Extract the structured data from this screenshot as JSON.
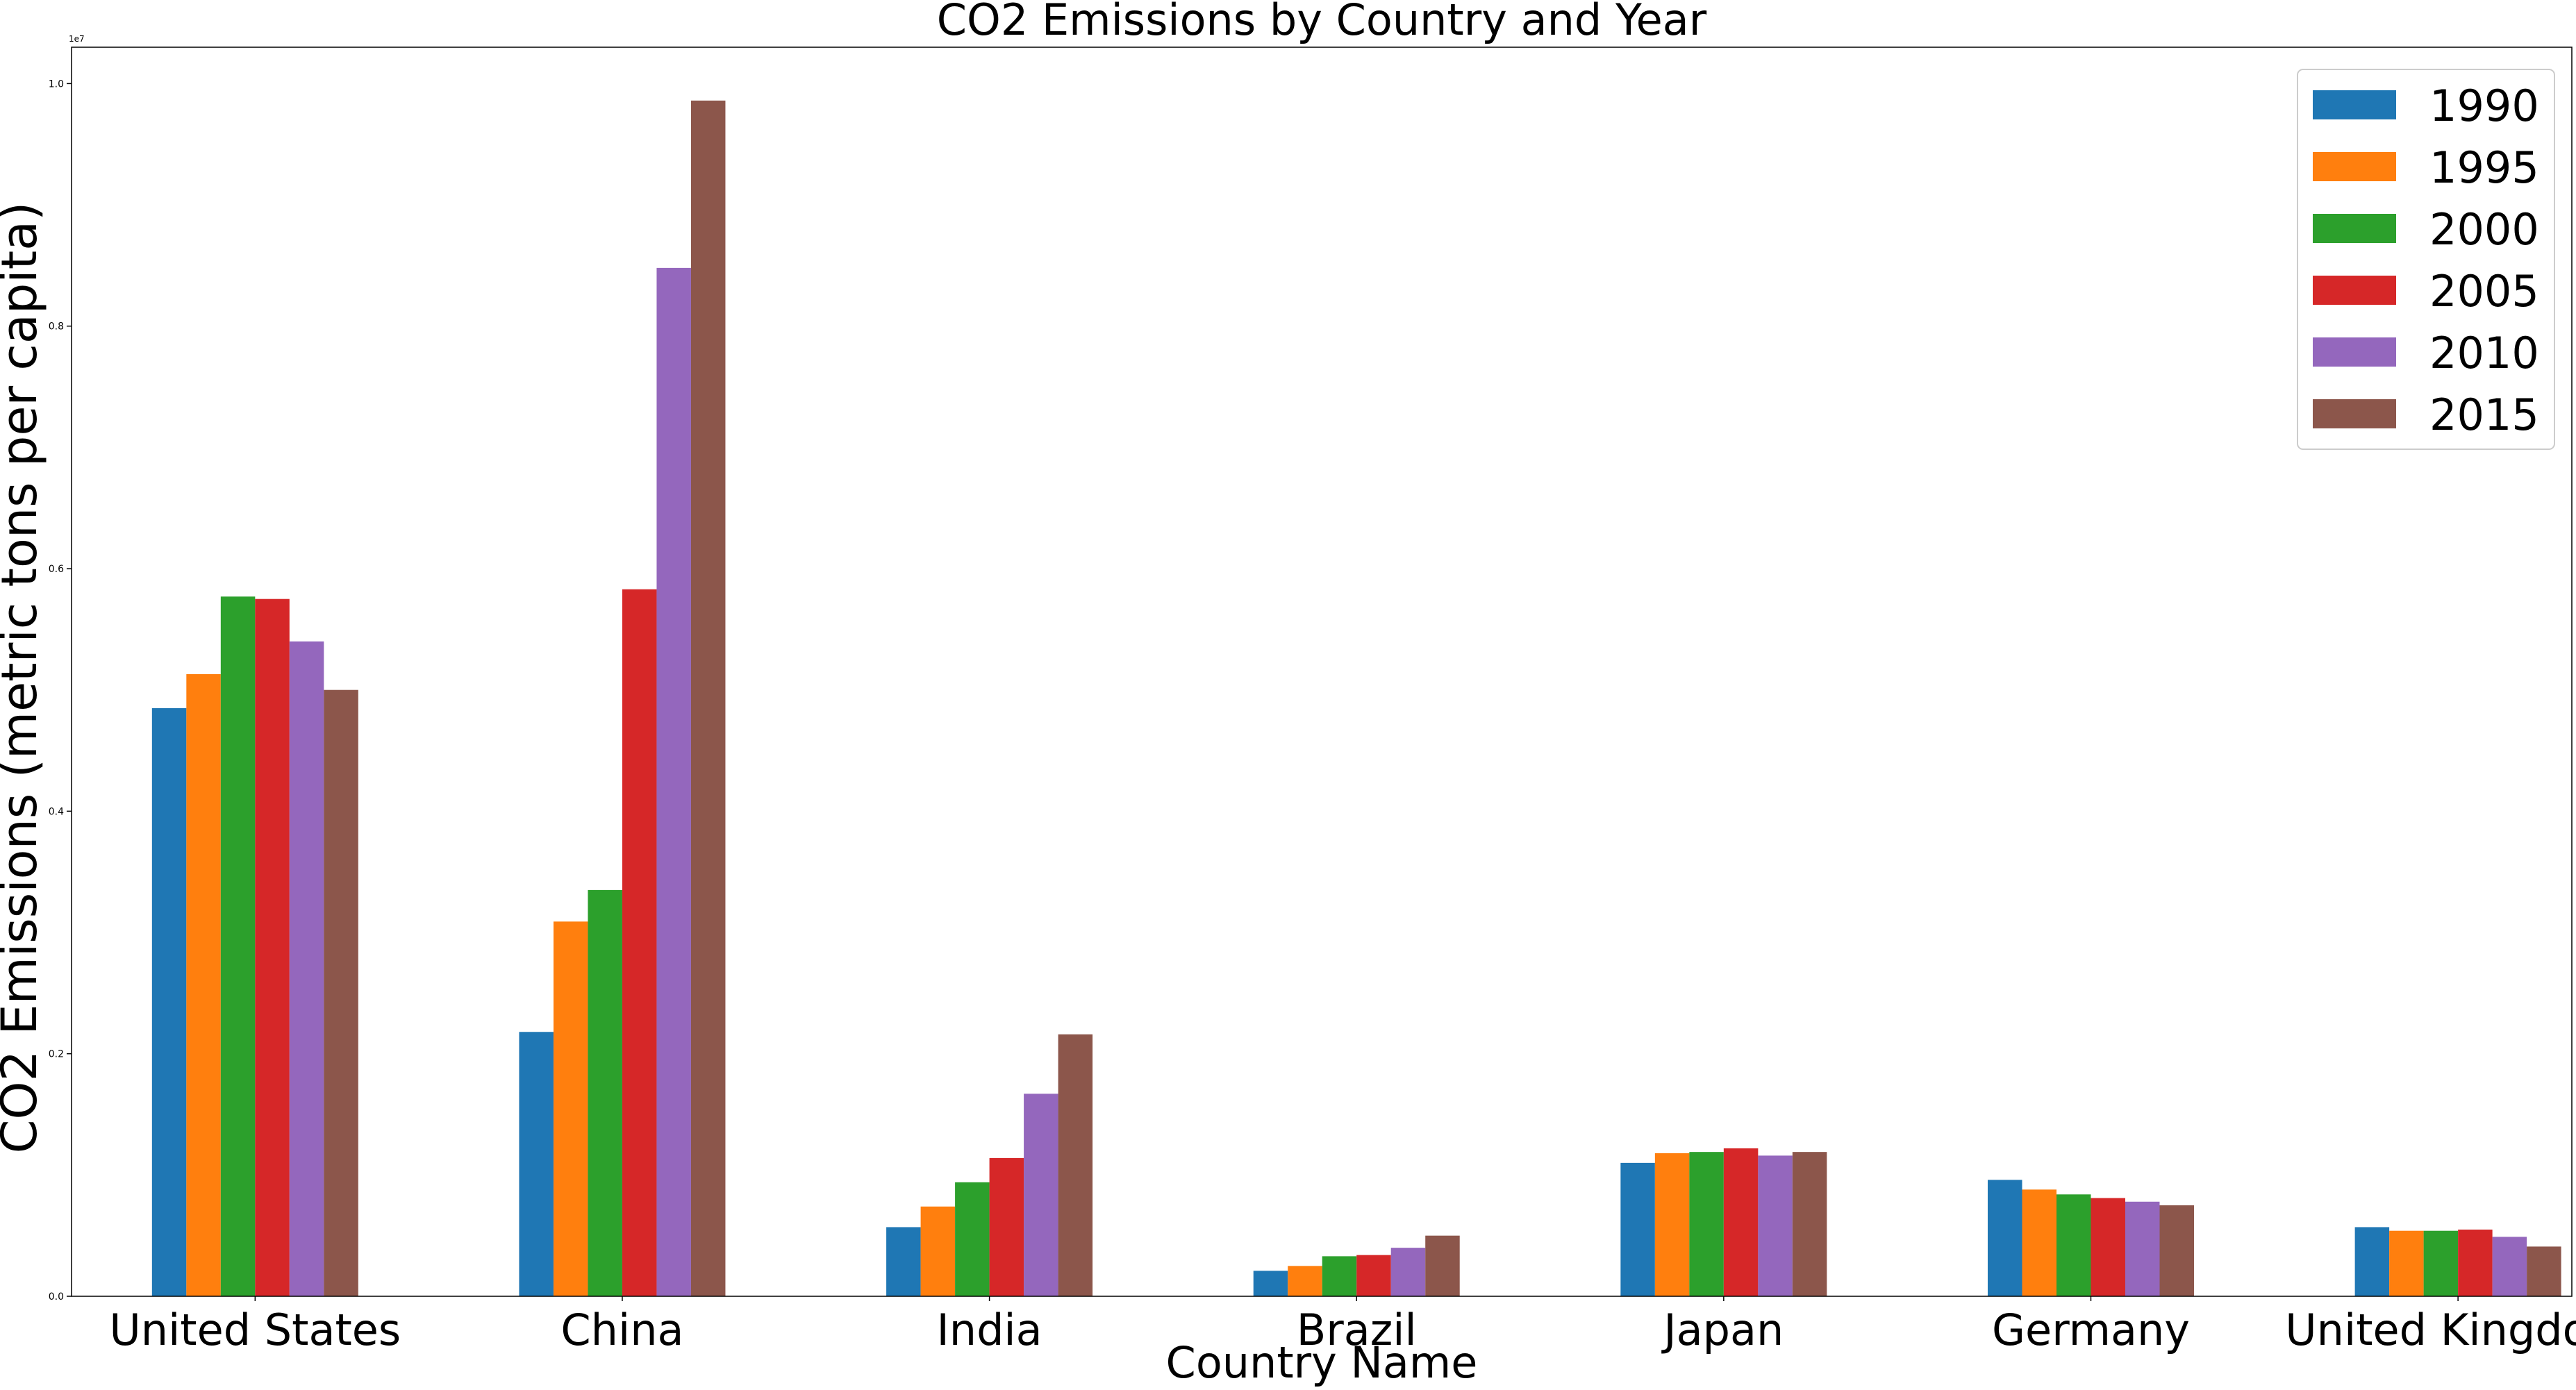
{
  "chart_data": {
    "type": "bar",
    "title": "CO2 Emissions by Country and Year",
    "xlabel": "Country Name",
    "ylabel": "CO2 Emissions (metric tons per capita)",
    "y_offset_text": "1e7",
    "ylim": [
      0,
      1.03
    ],
    "yticks": [
      "0.0",
      "0.2",
      "0.4",
      "0.6",
      "0.8",
      "1.0"
    ],
    "categories": [
      "United States",
      "China",
      "India",
      "Brazil",
      "Japan",
      "Germany",
      "United Kingdom"
    ],
    "legend_position": "top-right",
    "grid": false,
    "series": [
      {
        "name": "1990",
        "color": "#1f77b4",
        "values": [
          0.485,
          0.218,
          0.057,
          0.021,
          0.11,
          0.096,
          0.057
        ]
      },
      {
        "name": "1995",
        "color": "#ff7f0e",
        "values": [
          0.513,
          0.309,
          0.074,
          0.025,
          0.118,
          0.088,
          0.054
        ]
      },
      {
        "name": "2000",
        "color": "#2ca02c",
        "values": [
          0.577,
          0.335,
          0.094,
          0.033,
          0.119,
          0.084,
          0.054
        ]
      },
      {
        "name": "2005",
        "color": "#d62728",
        "values": [
          0.575,
          0.583,
          0.114,
          0.034,
          0.122,
          0.081,
          0.055
        ]
      },
      {
        "name": "2010",
        "color": "#9467bd",
        "values": [
          0.54,
          0.848,
          0.167,
          0.04,
          0.116,
          0.078,
          0.049
        ]
      },
      {
        "name": "2015",
        "color": "#8c564b",
        "values": [
          0.5,
          0.986,
          0.216,
          0.05,
          0.119,
          0.075,
          0.041
        ]
      }
    ]
  }
}
